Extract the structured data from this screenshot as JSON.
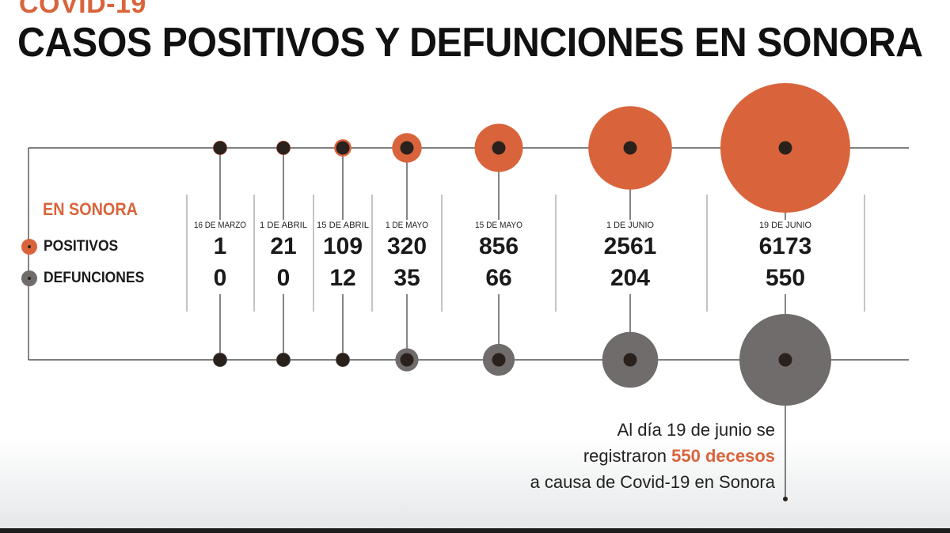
{
  "header": {
    "kicker": "COVID-19",
    "title": "CASOS POSITIVOS Y DEFUNCIONES EN SONORA"
  },
  "legend": {
    "title": "EN SONORA",
    "positivos_label": "POSITIVOS",
    "defunciones_label": "DEFUNCIONES"
  },
  "colors": {
    "positivos": "#d9643c",
    "defunciones": "#6f6c6b",
    "center_dot": "#2a211d",
    "line": "#333333"
  },
  "chart_data": {
    "type": "bubble-timeline",
    "categories": [
      "16 DE MARZO",
      "1 DE ABRIL",
      "15 DE ABRIL",
      "1 DE MAYO",
      "15 DE MAYO",
      "1 DE JUNIO",
      "19 DE JUNIO"
    ],
    "series": [
      {
        "name": "POSITIVOS",
        "values": [
          1,
          21,
          109,
          320,
          856,
          2561,
          6173
        ]
      },
      {
        "name": "DEFUNCIONES",
        "values": [
          0,
          0,
          12,
          35,
          66,
          204,
          550
        ]
      }
    ]
  },
  "annotation": {
    "line1": "Al día 19 de junio se",
    "line2_pre": "registraron",
    "line2_highlight": "550 decesos",
    "line3": "a causa de Covid-19 en Sonora"
  }
}
